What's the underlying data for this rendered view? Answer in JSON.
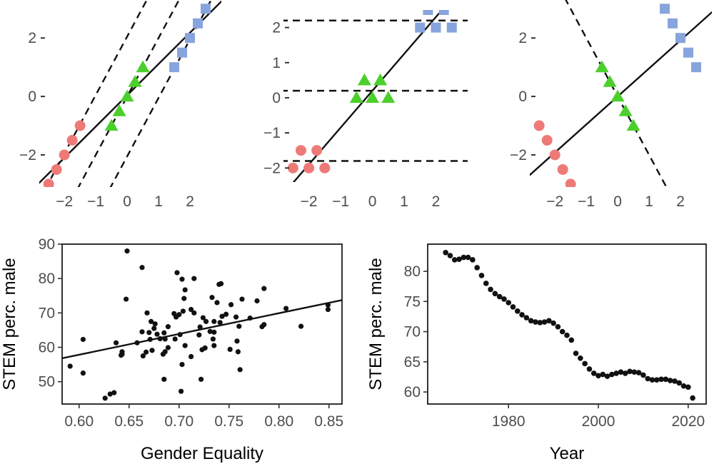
{
  "colors": {
    "red": "#ee7a77",
    "green": "#4ccf2c",
    "blue": "#88a4dc",
    "ink": "#111111"
  },
  "chart_data": [
    {
      "type": "scatter",
      "xlim": [
        -2.8,
        3.0
      ],
      "ylim": [
        -3.1,
        3.3
      ],
      "xticks": [
        "-2",
        "-1",
        "0",
        "1",
        "2"
      ],
      "yticks": [
        "-2",
        "0",
        "2"
      ],
      "series": [
        {
          "marker": "circle",
          "color": "#ee7a77",
          "x": [
            -2.5,
            -2.25,
            -2.0,
            -1.75,
            -1.5
          ],
          "y": [
            -3.0,
            -2.5,
            -2.0,
            -1.5,
            -1.0
          ]
        },
        {
          "marker": "triangle",
          "color": "#4ccf2c",
          "x": [
            -0.5,
            -0.25,
            0.0,
            0.25,
            0.5
          ],
          "y": [
            -1.0,
            -0.5,
            0.0,
            0.5,
            1.0
          ]
        },
        {
          "marker": "square",
          "color": "#88a4dc",
          "x": [
            1.5,
            1.75,
            2.0,
            2.25,
            2.5
          ],
          "y": [
            1.0,
            1.5,
            2.0,
            2.5,
            3.0
          ]
        }
      ],
      "lines": [
        {
          "style": "solid",
          "slope": 1.07,
          "intercept": 0.04
        },
        {
          "style": "dashed",
          "slope": 2.0,
          "intercept": 2.05
        },
        {
          "style": "dashed",
          "slope": 2.0,
          "intercept": 0.0
        },
        {
          "style": "dashed",
          "slope": 2.0,
          "intercept": -2.05
        }
      ]
    },
    {
      "type": "scatter",
      "xlim": [
        -2.8,
        3.0
      ],
      "ylim": [
        -2.4,
        2.5
      ],
      "xticks": [
        "-2",
        "-1",
        "0",
        "1",
        "2"
      ],
      "yticks": [
        "-2",
        "-1",
        "0",
        "1",
        "2"
      ],
      "series": [
        {
          "marker": "circle",
          "color": "#ee7a77",
          "x": [
            -2.5,
            -2.25,
            -2.0,
            -1.75,
            -1.5
          ],
          "y": [
            -2.0,
            -1.5,
            -2.0,
            -1.5,
            -2.0
          ]
        },
        {
          "marker": "triangle",
          "color": "#4ccf2c",
          "x": [
            -0.5,
            -0.25,
            0.0,
            0.25,
            0.5
          ],
          "y": [
            0.0,
            0.5,
            0.0,
            0.5,
            0.0
          ]
        },
        {
          "marker": "square",
          "color": "#88a4dc",
          "x": [
            1.5,
            1.75,
            2.0,
            2.25,
            2.5
          ],
          "y": [
            2.0,
            2.5,
            2.0,
            2.5,
            2.0
          ]
        }
      ],
      "lines": [
        {
          "style": "solid",
          "slope": 1.05,
          "intercept": 0.2
        },
        {
          "style": "dashed",
          "slope": 0.0,
          "intercept": 2.2
        },
        {
          "style": "dashed",
          "slope": 0.0,
          "intercept": 0.2
        },
        {
          "style": "dashed",
          "slope": 0.0,
          "intercept": -1.8
        }
      ]
    },
    {
      "type": "scatter",
      "xlim": [
        -2.8,
        3.0
      ],
      "ylim": [
        -3.1,
        3.3
      ],
      "xticks": [
        "-2",
        "-1",
        "0",
        "1",
        "2"
      ],
      "yticks": [
        "-2",
        "0",
        "2"
      ],
      "series": [
        {
          "marker": "circle",
          "color": "#ee7a77",
          "x": [
            -2.5,
            -2.25,
            -2.0,
            -1.75,
            -1.5
          ],
          "y": [
            -1.0,
            -1.5,
            -2.0,
            -2.5,
            -3.0
          ]
        },
        {
          "marker": "triangle",
          "color": "#4ccf2c",
          "x": [
            -0.5,
            -0.25,
            0.0,
            0.25,
            0.5
          ],
          "y": [
            1.0,
            0.5,
            0.0,
            -0.5,
            -1.0
          ]
        },
        {
          "marker": "square",
          "color": "#88a4dc",
          "x": [
            1.5,
            1.75,
            2.0,
            2.25,
            2.5
          ],
          "y": [
            3.0,
            2.5,
            2.0,
            1.5,
            1.0
          ]
        }
      ],
      "lines": [
        {
          "style": "solid",
          "slope": 0.96,
          "intercept": 0.0
        },
        {
          "style": "dashed",
          "slope": -2.0,
          "intercept": 0.0
        }
      ]
    },
    {
      "type": "scatter",
      "xlabel": "Gender Equality",
      "ylabel": "STEM perc. male",
      "xlim": [
        0.583,
        0.863
      ],
      "ylim": [
        43.5,
        90
      ],
      "xticks": [
        "0.60",
        "0.65",
        "0.70",
        "0.75",
        "0.80",
        "0.85"
      ],
      "yticks": [
        "50",
        "60",
        "70",
        "80",
        "90"
      ],
      "points": [
        [
          0.648,
          88.0
        ],
        [
          0.663,
          83.2
        ],
        [
          0.698,
          81.7
        ],
        [
          0.703,
          79.8
        ],
        [
          0.715,
          80.0
        ],
        [
          0.706,
          76.7
        ],
        [
          0.74,
          78.3
        ],
        [
          0.742,
          78.5
        ],
        [
          0.785,
          77.1
        ],
        [
          0.647,
          74.0
        ],
        [
          0.705,
          74.2
        ],
        [
          0.733,
          74.5
        ],
        [
          0.738,
          73.0
        ],
        [
          0.763,
          74.0
        ],
        [
          0.752,
          72.4
        ],
        [
          0.778,
          73.5
        ],
        [
          0.849,
          72.3
        ],
        [
          0.849,
          71.0
        ],
        [
          0.807,
          71.3
        ],
        [
          0.668,
          70.0
        ],
        [
          0.695,
          69.8
        ],
        [
          0.7,
          69.5
        ],
        [
          0.704,
          70.5
        ],
        [
          0.712,
          71.0
        ],
        [
          0.715,
          70.0
        ],
        [
          0.697,
          68.8
        ],
        [
          0.724,
          68.6
        ],
        [
          0.727,
          67.5
        ],
        [
          0.735,
          67.5
        ],
        [
          0.743,
          69.0
        ],
        [
          0.747,
          69.6
        ],
        [
          0.757,
          68.8
        ],
        [
          0.771,
          68.5
        ],
        [
          0.672,
          67.5
        ],
        [
          0.676,
          66.8
        ],
        [
          0.675,
          65.5
        ],
        [
          0.689,
          66.0
        ],
        [
          0.663,
          64.5
        ],
        [
          0.67,
          64.3
        ],
        [
          0.678,
          63.8
        ],
        [
          0.685,
          64.2
        ],
        [
          0.701,
          63.7
        ],
        [
          0.721,
          65.9
        ],
        [
          0.731,
          64.6
        ],
        [
          0.735,
          64.4
        ],
        [
          0.741,
          67.2
        ],
        [
          0.76,
          66.1
        ],
        [
          0.783,
          66.0
        ],
        [
          0.785,
          66.6
        ],
        [
          0.822,
          66.1
        ],
        [
          0.604,
          62.3
        ],
        [
          0.658,
          61.3
        ],
        [
          0.671,
          62.3
        ],
        [
          0.681,
          62.5
        ],
        [
          0.686,
          62.4
        ],
        [
          0.696,
          62.4
        ],
        [
          0.72,
          63.6
        ],
        [
          0.706,
          60.5
        ],
        [
          0.734,
          62.4
        ],
        [
          0.758,
          61.8
        ],
        [
          0.689,
          59.9
        ],
        [
          0.686,
          58.7
        ],
        [
          0.684,
          58.0
        ],
        [
          0.673,
          59.1
        ],
        [
          0.667,
          58.6
        ],
        [
          0.664,
          57.5
        ],
        [
          0.643,
          58.0
        ],
        [
          0.643,
          58.7
        ],
        [
          0.637,
          61.3
        ],
        [
          0.726,
          59.8
        ],
        [
          0.723,
          59.3
        ],
        [
          0.735,
          60.5
        ],
        [
          0.751,
          59.4
        ],
        [
          0.759,
          58.7
        ],
        [
          0.591,
          54.5
        ],
        [
          0.604,
          52.5
        ],
        [
          0.703,
          55.0
        ],
        [
          0.712,
          57.3
        ],
        [
          0.761,
          53.5
        ],
        [
          0.685,
          50.7
        ],
        [
          0.722,
          50.7
        ],
        [
          0.702,
          47.2
        ],
        [
          0.631,
          46.4
        ],
        [
          0.635,
          46.8
        ],
        [
          0.626,
          45.2
        ],
        [
          0.642,
          57.7
        ]
      ],
      "fit": {
        "slope": 60.4,
        "intercept": 21.6
      }
    },
    {
      "type": "line",
      "xlabel": "Year",
      "ylabel": "STEM perc. male",
      "xlim": [
        1962,
        2024
      ],
      "ylim": [
        58,
        84.5
      ],
      "xticks": [
        "1980",
        "2000",
        "2020"
      ],
      "yticks": [
        "60",
        "65",
        "70",
        "75",
        "80"
      ],
      "x": [
        1966,
        1967,
        1968,
        1969,
        1970,
        1971,
        1972,
        1973,
        1974,
        1975,
        1976,
        1977,
        1978,
        1979,
        1980,
        1981,
        1982,
        1983,
        1984,
        1985,
        1986,
        1987,
        1988,
        1989,
        1990,
        1991,
        1992,
        1993,
        1994,
        1995,
        1996,
        1997,
        1998,
        1999,
        2000,
        2001,
        2002,
        2003,
        2004,
        2005,
        2006,
        2007,
        2008,
        2009,
        2010,
        2011,
        2012,
        2013,
        2014,
        2015,
        2016,
        2017,
        2018,
        2019,
        2020,
        2021
      ],
      "y": [
        83.1,
        82.6,
        81.9,
        82.0,
        82.3,
        82.3,
        81.9,
        80.6,
        79.3,
        78.0,
        77.0,
        76.3,
        75.8,
        75.4,
        74.8,
        74.1,
        73.4,
        72.8,
        72.3,
        71.8,
        71.6,
        71.5,
        71.6,
        71.8,
        71.4,
        70.8,
        70.0,
        69.4,
        68.6,
        66.4,
        65.6,
        64.7,
        63.8,
        63.1,
        62.7,
        62.9,
        62.6,
        62.9,
        63.1,
        63.3,
        63.1,
        63.4,
        63.3,
        63.2,
        62.8,
        62.2,
        62.0,
        62.0,
        62.1,
        62.1,
        61.9,
        61.8,
        61.5,
        61.0,
        60.8,
        59.0
      ]
    }
  ]
}
